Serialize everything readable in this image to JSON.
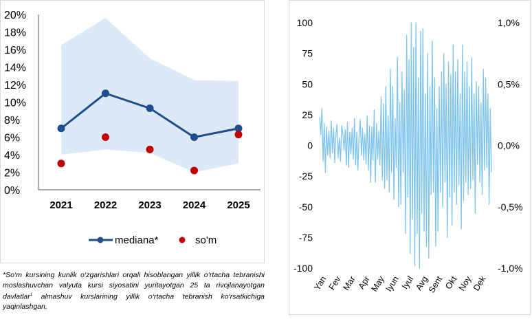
{
  "chart_data": [
    {
      "type": "line",
      "categories": [
        "2021",
        "2022",
        "2023",
        "2024",
        "2025"
      ],
      "ylim": [
        0,
        20
      ],
      "yticks": [
        "0%",
        "2%",
        "4%",
        "6%",
        "8%",
        "10%",
        "12%",
        "14%",
        "16%",
        "18%",
        "20%"
      ],
      "band": {
        "name": "range",
        "low": [
          4.0,
          4.6,
          4.2,
          2.0,
          3.0
        ],
        "high": [
          16.5,
          19.6,
          15.0,
          12.5,
          12.4
        ]
      },
      "series": [
        {
          "name": "mediana*",
          "type": "line",
          "values": [
            7.0,
            11.0,
            9.3,
            6.0,
            7.0
          ],
          "color": "#1f4e8c"
        },
        {
          "name": "so'm",
          "type": "scatter",
          "values": [
            3.0,
            6.0,
            4.6,
            2.2,
            6.3
          ],
          "color": "#c00000"
        }
      ],
      "legend": [
        "mediana*",
        "so'm"
      ],
      "colors": {
        "band": "#dce9f7",
        "line": "#1f4e8c",
        "dots": "#c00000"
      }
    },
    {
      "type": "line",
      "ylim": [
        -100,
        100
      ],
      "yticks": [
        "-100",
        "-75",
        "-50",
        "-25",
        "0",
        "25",
        "50",
        "75",
        "100"
      ],
      "y2lim": [
        -1.0,
        1.0
      ],
      "y2ticks": [
        "-1,0%",
        "-0,5%",
        "0,0%",
        "0,5%",
        "1,0%"
      ],
      "xticks": [
        "Yan",
        "Fev",
        "Mar",
        "Apr",
        "May",
        "Iyun",
        "Iyul",
        "Avg",
        "Sent",
        "Okt",
        "Noy",
        "Dek"
      ],
      "color": "#7fc4ee",
      "values": [
        23,
        9,
        30,
        -13,
        18,
        -22,
        15,
        -8,
        12,
        -10,
        20,
        -6,
        14,
        -14,
        8,
        17,
        -10,
        6,
        -13,
        16,
        10,
        -4,
        13,
        -16,
        19,
        -18,
        11,
        -7,
        14,
        -11,
        22,
        -16,
        11,
        -20,
        8,
        21,
        -8,
        14,
        -12,
        9,
        -15,
        24,
        -20,
        16,
        -30,
        15,
        -12,
        29,
        -30,
        18,
        -11,
        12,
        -16,
        40,
        -28,
        34,
        -35,
        48,
        -28,
        24,
        -38,
        62,
        -22,
        48,
        -44,
        22,
        -18,
        72,
        -50,
        35,
        -48,
        60,
        -22,
        45,
        -72,
        90,
        -42,
        70,
        -88,
        100,
        -60,
        80,
        -98,
        100,
        -72,
        55,
        -100,
        93,
        -55,
        95,
        -70,
        42,
        -82,
        75,
        -92,
        48,
        -40,
        85,
        -38,
        55,
        -82,
        30,
        -70,
        48,
        -38,
        60,
        -50,
        75,
        -30,
        50,
        -75,
        68,
        -42,
        58,
        -65,
        82,
        -38,
        60,
        -48,
        70,
        -32,
        42,
        -68,
        82,
        -45,
        60,
        -30,
        68,
        -40,
        48,
        -35,
        72,
        -28,
        42,
        -55,
        52,
        -15,
        48,
        -30,
        35,
        -40,
        62,
        -20,
        55,
        -18,
        42,
        -48,
        30,
        -22
      ]
    }
  ],
  "legend": {
    "line_label": "mediana*",
    "dots_label": "so'm"
  },
  "footnote": {
    "text": "*So‘m kursining kunlik o‘zgarishlari orqali hisoblangan yillik o‘rtacha tebranishi moslashuvchan valyuta kursi siyosatini yuritayotgan 25 ta rivojlanayotgan davlatlar",
    "sup": "1",
    "text2": " almashuv kurslarining yillik o‘rtacha tebranish ko‘rsatkichiga yaqinlashgan."
  }
}
